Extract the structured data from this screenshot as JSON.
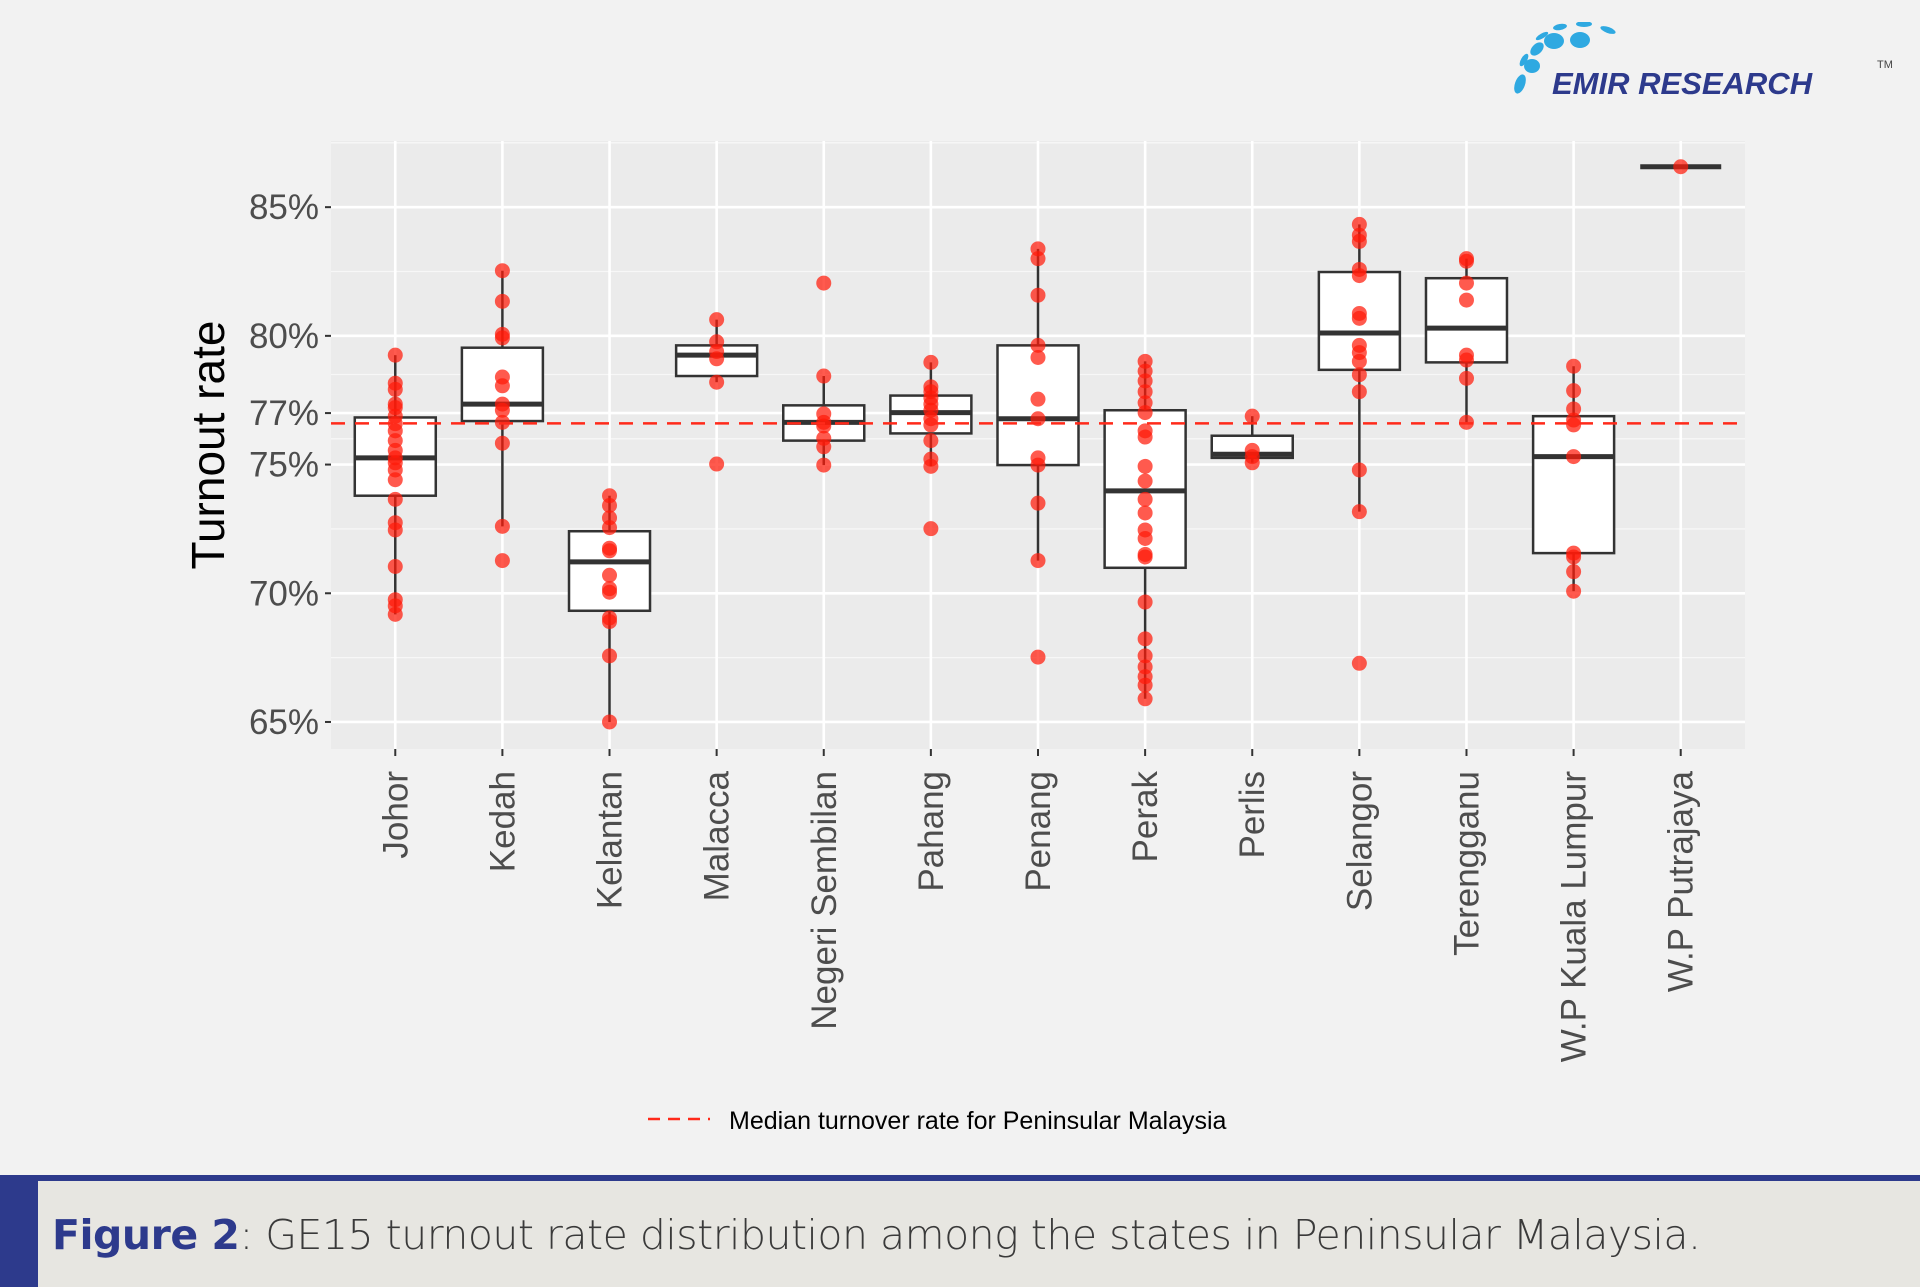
{
  "logo": {
    "text": "EMIR RESEARCH",
    "tm": "TM"
  },
  "caption": {
    "label": "Figure 2",
    "text": ": GE15 turnout rate distribution among the states in Peninsular Malaysia."
  },
  "colors": {
    "points": "#ff1a0a",
    "median_line": "#ff2a1a",
    "panel": "#ebebeb",
    "accent": "#2d3a8c",
    "logo_dots": "#2fa9e1"
  },
  "chart_data": {
    "type": "boxplot",
    "ylabel": "Turnout rate",
    "xlabel": "",
    "ylim": [
      63.95,
      87.57
    ],
    "yticks": [
      65,
      70,
      75,
      77,
      80,
      85
    ],
    "ytick_labels": [
      "65%",
      "70%",
      "75%",
      "77%",
      "80%",
      "85%"
    ],
    "grid": true,
    "reference_line": {
      "value": 76.6,
      "style": "dashed",
      "label": "Median turnover rate for Peninsular Malaysia"
    },
    "legend_position": "bottom",
    "categories": [
      "Johor",
      "Kedah",
      "Kelantan",
      "Malacca",
      "Negeri Sembilan",
      "Pahang",
      "Penang",
      "Perak",
      "Perlis",
      "Selangor",
      "Terengganu",
      "W.P Kuala Lumpur",
      "W.P Putrajaya"
    ],
    "boxes": [
      {
        "q1": 73.79,
        "median": 75.26,
        "q3": 76.83,
        "whisker_low": 69.18,
        "whisker_high": 79.25,
        "points": [
          79.25,
          78.16,
          77.92,
          77.35,
          77.21,
          76.88,
          76.59,
          76.31,
          75.93,
          75.55,
          75.26,
          75.07,
          74.79,
          74.41,
          73.65,
          72.74,
          72.46,
          71.04,
          69.75,
          69.51,
          69.18
        ]
      },
      {
        "q1": 76.69,
        "median": 77.35,
        "q3": 79.54,
        "whisker_low": 72.6,
        "whisker_high": 82.53,
        "points": [
          82.53,
          81.34,
          80.06,
          79.92,
          78.4,
          78.06,
          77.35,
          77.11,
          76.64,
          75.83,
          72.6,
          71.27
        ]
      },
      {
        "q1": 69.32,
        "median": 71.22,
        "q3": 72.41,
        "whisker_low": 65.0,
        "whisker_high": 73.79,
        "points": [
          73.79,
          73.41,
          72.93,
          72.55,
          71.75,
          71.65,
          70.7,
          70.18,
          70.04,
          69.04,
          68.9,
          67.57,
          65.0
        ]
      },
      {
        "q1": 78.44,
        "median": 79.25,
        "q3": 79.63,
        "whisker_low": 78.2,
        "whisker_high": 80.63,
        "points": [
          80.63,
          79.77,
          79.39,
          79.11,
          78.2,
          75.02
        ]
      },
      {
        "q1": 75.93,
        "median": 76.64,
        "q3": 77.3,
        "whisker_low": 74.98,
        "whisker_high": 78.44,
        "points": [
          82.05,
          78.44,
          76.97,
          76.64,
          76.5,
          76.02,
          75.69,
          74.98
        ]
      },
      {
        "q1": 76.21,
        "median": 77.02,
        "q3": 77.68,
        "whisker_low": 74.93,
        "whisker_high": 78.97,
        "points": [
          78.97,
          78.02,
          77.83,
          77.59,
          77.35,
          77.11,
          76.78,
          76.54,
          75.93,
          75.21,
          74.93,
          72.51
        ]
      },
      {
        "q1": 74.98,
        "median": 76.78,
        "q3": 79.63,
        "whisker_low": 71.27,
        "whisker_high": 83.38,
        "points": [
          83.38,
          83.0,
          81.58,
          79.63,
          79.16,
          77.54,
          76.78,
          75.26,
          74.98,
          73.5,
          71.27,
          67.52
        ]
      },
      {
        "q1": 70.99,
        "median": 73.98,
        "q3": 77.11,
        "whisker_low": 65.9,
        "whisker_high": 79.01,
        "points": [
          79.01,
          78.63,
          78.25,
          77.83,
          77.4,
          77.02,
          76.31,
          76.07,
          74.93,
          74.36,
          73.65,
          73.12,
          72.46,
          72.13,
          71.51,
          71.41,
          69.66,
          68.23,
          67.57,
          67.14,
          66.76,
          66.43,
          65.9
        ]
      },
      {
        "q1": 75.26,
        "median": 75.4,
        "q3": 76.12,
        "whisker_low": 75.07,
        "whisker_high": 76.88,
        "points": [
          76.88,
          75.55,
          75.31,
          75.07
        ]
      },
      {
        "q1": 78.68,
        "median": 80.11,
        "q3": 82.48,
        "whisker_low": 73.17,
        "whisker_high": 84.33,
        "points": [
          84.33,
          83.91,
          83.67,
          82.58,
          82.34,
          80.87,
          80.68,
          79.63,
          79.35,
          79.01,
          78.49,
          77.83,
          74.79,
          73.17,
          67.28
        ]
      },
      {
        "q1": 78.97,
        "median": 80.3,
        "q3": 82.24,
        "whisker_low": 76.64,
        "whisker_high": 83.0,
        "points": [
          83.0,
          82.9,
          82.05,
          81.39,
          79.25,
          79.06,
          78.35,
          76.64
        ]
      },
      {
        "q1": 71.56,
        "median": 75.31,
        "q3": 76.88,
        "whisker_low": 70.08,
        "whisker_high": 78.82,
        "points": [
          78.82,
          77.87,
          77.16,
          76.73,
          76.54,
          75.31,
          71.56,
          71.41,
          70.84,
          70.08
        ]
      },
      {
        "q1": 86.57,
        "median": 86.57,
        "q3": 86.57,
        "whisker_low": 86.57,
        "whisker_high": 86.57,
        "points": [
          86.57
        ]
      }
    ]
  }
}
